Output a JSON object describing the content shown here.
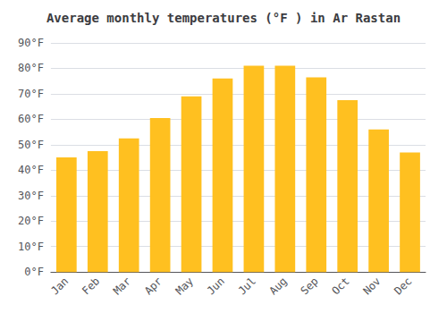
{
  "chart_data": {
    "type": "bar",
    "title": "Average monthly temperatures (°F ) in Ar Rastan",
    "categories": [
      "Jan",
      "Feb",
      "Mar",
      "Apr",
      "May",
      "Jun",
      "Jul",
      "Aug",
      "Sep",
      "Oct",
      "Nov",
      "Dec"
    ],
    "values": [
      45,
      47.5,
      52.5,
      60.5,
      69,
      76,
      81,
      81,
      76.5,
      67.5,
      56,
      47
    ],
    "color": "#FFC020",
    "ylim": [
      0,
      90
    ],
    "yticks": [
      {
        "value": 0,
        "label": "0°F"
      },
      {
        "value": 10,
        "label": "10°F"
      },
      {
        "value": 20,
        "label": "20°F"
      },
      {
        "value": 30,
        "label": "30°F"
      },
      {
        "value": 40,
        "label": "40°F"
      },
      {
        "value": 50,
        "label": "50°F"
      },
      {
        "value": 60,
        "label": "60°F"
      },
      {
        "value": 70,
        "label": "70°F"
      },
      {
        "value": 80,
        "label": "80°F"
      },
      {
        "value": 90,
        "label": "90°F"
      }
    ],
    "grid": true
  }
}
